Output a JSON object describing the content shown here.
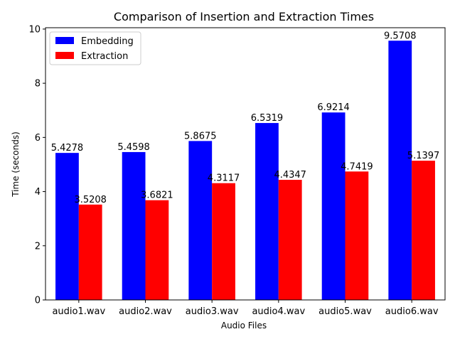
{
  "chart_data": {
    "type": "bar",
    "title": "Comparison of Insertion and Extraction Times",
    "xlabel": "Audio Files",
    "ylabel": "Time (seconds)",
    "categories": [
      "audio1.wav",
      "audio2.wav",
      "audio3.wav",
      "audio4.wav",
      "audio5.wav",
      "audio6.wav"
    ],
    "series": [
      {
        "name": "Embedding",
        "color": "#0000ff",
        "values": [
          5.4278,
          5.4598,
          5.8675,
          6.5319,
          6.9214,
          9.5708
        ],
        "labels": [
          "5.4278",
          "5.4598",
          "5.8675",
          "6.5319",
          "6.9214",
          "9.5708"
        ]
      },
      {
        "name": "Extraction",
        "color": "#ff0000",
        "values": [
          3.5208,
          3.6821,
          4.3117,
          4.4347,
          4.7419,
          5.1397
        ],
        "labels": [
          "3.5208",
          "3.6821",
          "4.3117",
          "4.4347",
          "4.7419",
          "5.1397"
        ]
      }
    ],
    "ylim": [
      0,
      10.05
    ],
    "yticks": [
      0,
      2,
      4,
      6,
      8,
      10
    ],
    "ytick_labels": [
      "0",
      "2",
      "4",
      "6",
      "8",
      "10"
    ],
    "grid": false,
    "legend_position": "top-left"
  }
}
